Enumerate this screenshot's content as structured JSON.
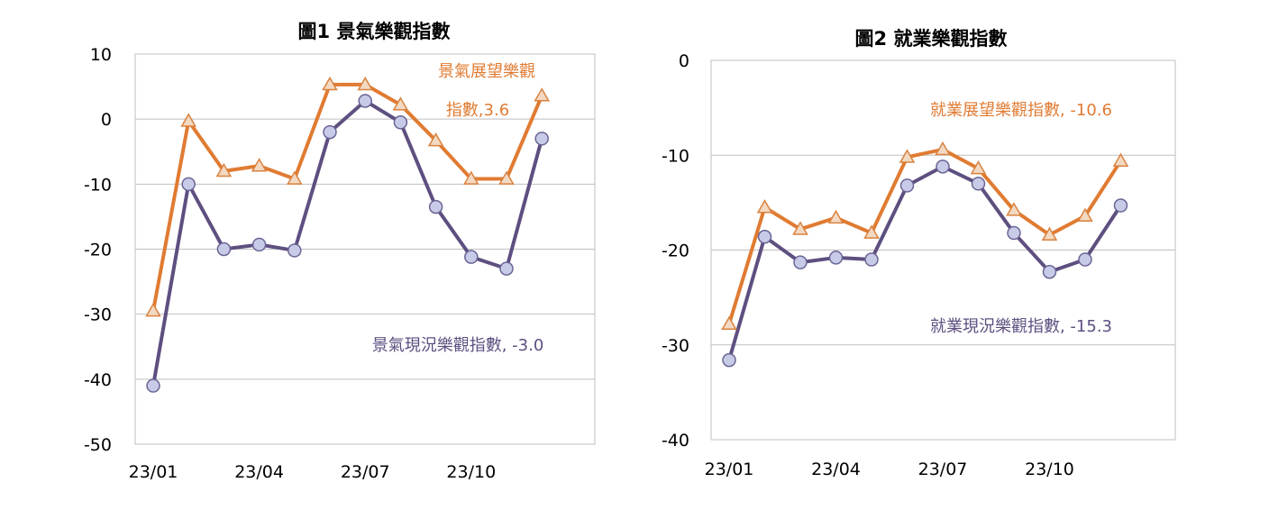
{
  "chart_data": [
    {
      "type": "line",
      "title": "圖1  景氣樂觀指數",
      "xlabel": "",
      "ylabel": "",
      "ylim": [
        -50,
        10
      ],
      "yticks": [
        10,
        0,
        -10,
        -20,
        -30,
        -40,
        -50
      ],
      "x": [
        "23/01",
        "23/02",
        "23/03",
        "23/04",
        "23/05",
        "23/06",
        "23/07",
        "23/08",
        "23/09",
        "23/10",
        "23/11",
        "23/12"
      ],
      "xtick_labels": [
        "23/01",
        "23/04",
        "23/07",
        "23/10"
      ],
      "grid": true,
      "series": [
        {
          "values": [
            -29.5,
            -0.3,
            -8.0,
            -7.2,
            -9.2,
            5.3,
            5.3,
            2.2,
            -3.3,
            -9.2,
            -9.2,
            3.6
          ],
          "color": "#E07B32",
          "marker": "triangle"
        },
        {
          "values": [
            -41.0,
            -10.0,
            -20.0,
            -19.3,
            -20.2,
            -2.0,
            2.8,
            -0.5,
            -13.5,
            -21.2,
            -23.0,
            -3.0
          ],
          "color": "#5E4F80",
          "marker": "circle"
        }
      ],
      "annotations": [
        {
          "text": "景氣展望樂觀",
          "color": "#E07B32"
        },
        {
          "text": "指數,3.6",
          "color": "#E07B32"
        },
        {
          "text": "景氣現況樂觀指數, -3.0",
          "color": "#5E4F80"
        }
      ]
    },
    {
      "type": "line",
      "title": "圖2  就業樂觀指數",
      "xlabel": "",
      "ylabel": "",
      "ylim": [
        -40,
        0
      ],
      "yticks": [
        0,
        -10,
        -20,
        -30,
        -40
      ],
      "x": [
        "23/01",
        "23/02",
        "23/03",
        "23/04",
        "23/05",
        "23/06",
        "23/07",
        "23/08",
        "23/09",
        "23/10",
        "23/11",
        "23/12"
      ],
      "xtick_labels": [
        "23/01",
        "23/04",
        "23/07",
        "23/10"
      ],
      "grid": true,
      "series": [
        {
          "values": [
            -27.8,
            -15.5,
            -17.8,
            -16.6,
            -18.2,
            -10.2,
            -9.4,
            -11.4,
            -15.8,
            -18.4,
            -16.4,
            -10.6
          ],
          "color": "#E07B32",
          "marker": "triangle"
        },
        {
          "values": [
            -31.6,
            -18.6,
            -21.3,
            -20.8,
            -21.0,
            -13.2,
            -11.2,
            -13.0,
            -18.2,
            -22.3,
            -21.0,
            -15.3
          ],
          "color": "#5E4F80",
          "marker": "circle"
        }
      ],
      "annotations": [
        {
          "text": "就業展望樂觀指數, -10.6",
          "color": "#E07B32"
        },
        {
          "text": "就業現況樂觀指數, -15.3",
          "color": "#5E4F80"
        }
      ]
    }
  ]
}
